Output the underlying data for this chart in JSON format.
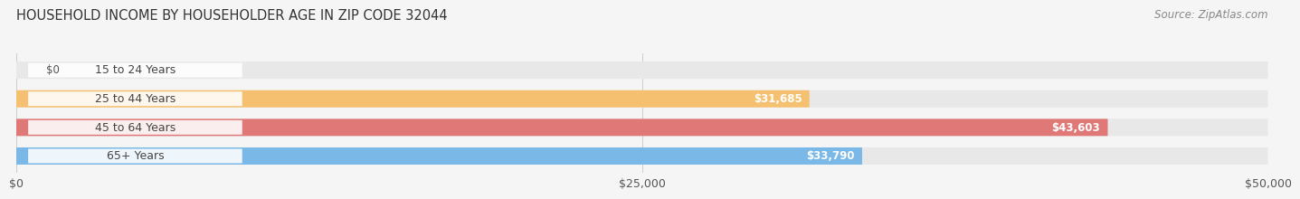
{
  "title": "HOUSEHOLD INCOME BY HOUSEHOLDER AGE IN ZIP CODE 32044",
  "source": "Source: ZipAtlas.com",
  "categories": [
    "15 to 24 Years",
    "25 to 44 Years",
    "45 to 64 Years",
    "65+ Years"
  ],
  "values": [
    0,
    31685,
    43603,
    33790
  ],
  "bar_colors": [
    "#f4a0b0",
    "#f5c170",
    "#e07878",
    "#7ab8e8"
  ],
  "xlim": [
    0,
    50000
  ],
  "xticks": [
    0,
    25000,
    50000
  ],
  "xticklabels": [
    "$0",
    "$25,000",
    "$50,000"
  ],
  "value_labels": [
    "$0",
    "$31,685",
    "$43,603",
    "$33,790"
  ],
  "bg_color": "#f5f5f5",
  "bar_bg_color": "#e8e8e8",
  "title_fontsize": 10.5,
  "source_fontsize": 8.5,
  "label_fontsize": 9,
  "value_fontsize": 8.5,
  "tick_fontsize": 9,
  "bar_height": 0.6
}
